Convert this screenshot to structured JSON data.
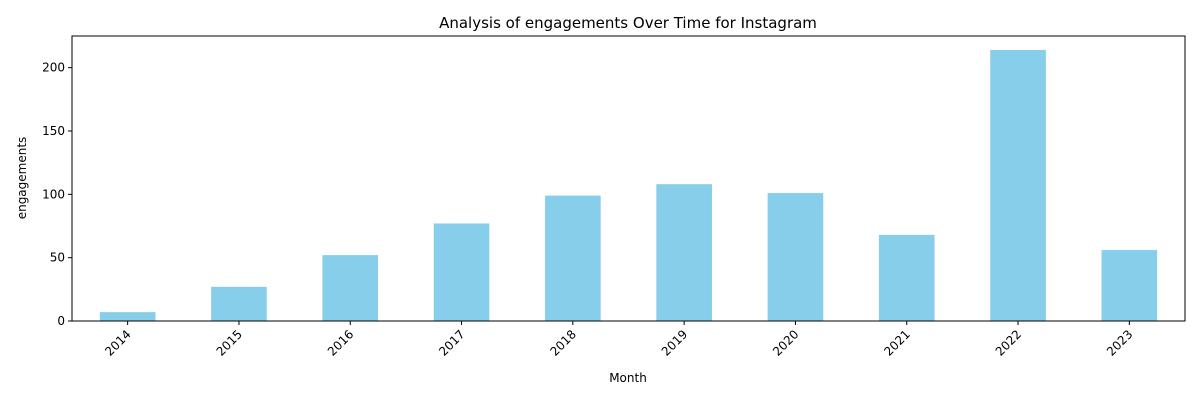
{
  "chart_data": {
    "type": "bar",
    "title": "Analysis of engagements Over Time for Instagram",
    "xlabel": "Month",
    "ylabel": "engagements",
    "categories": [
      "2014",
      "2015",
      "2016",
      "2017",
      "2018",
      "2019",
      "2020",
      "2021",
      "2022",
      "2023"
    ],
    "values": [
      7,
      27,
      52,
      77,
      99,
      108,
      101,
      68,
      214,
      56
    ],
    "ylim": [
      0,
      225
    ],
    "yticks": [
      0,
      50,
      100,
      150,
      200
    ],
    "grid": false,
    "legend": "none",
    "bar_color": "#87ceeb"
  }
}
